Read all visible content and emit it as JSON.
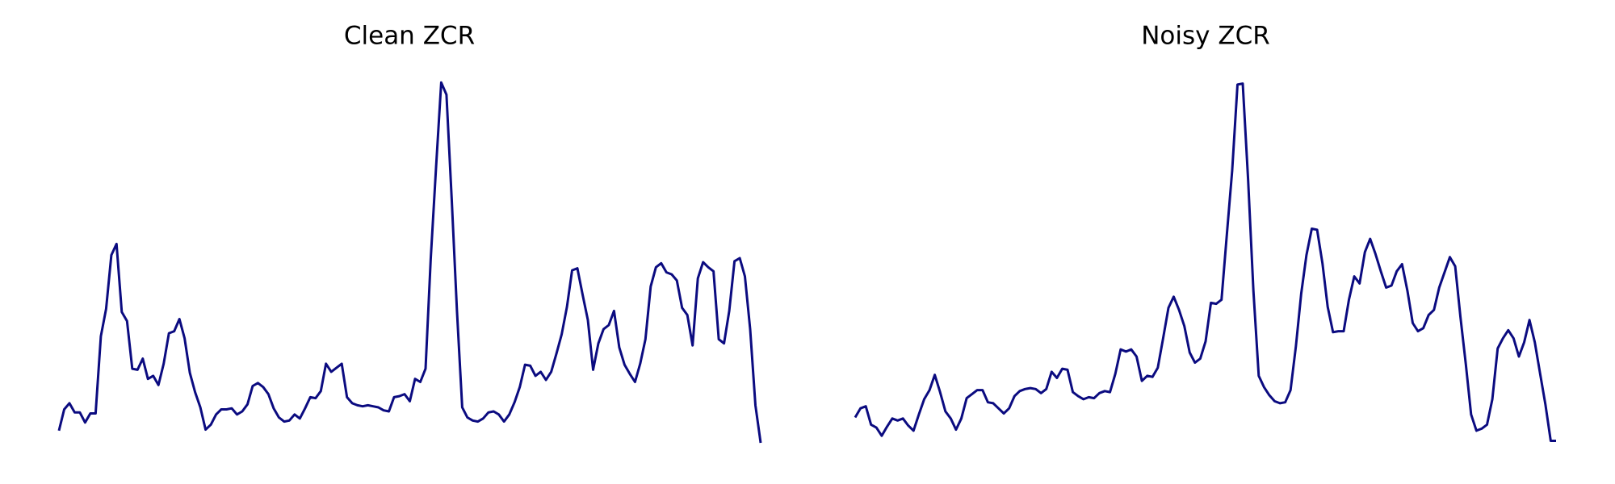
{
  "chart_data": [
    {
      "type": "line",
      "title": "Clean ZCR",
      "color": "#0b0b80",
      "ylim": [
        0,
        360
      ],
      "values": [
        12,
        33,
        39,
        30,
        30,
        20,
        29,
        29,
        105,
        132,
        185,
        196,
        129,
        120,
        73,
        72,
        83,
        63,
        66,
        57,
        78,
        108,
        110,
        122,
        103,
        69,
        50,
        35,
        13,
        18,
        28,
        33,
        33,
        34,
        28,
        31,
        38,
        56,
        59,
        55,
        48,
        34,
        25,
        21,
        22,
        28,
        24,
        34,
        45,
        44,
        51,
        78,
        70,
        74,
        78,
        45,
        39,
        37,
        36,
        37,
        36,
        35,
        32,
        31,
        45,
        46,
        48,
        41,
        63,
        60,
        73,
        181,
        270,
        355,
        343,
        240,
        130,
        35,
        25,
        22,
        21,
        24,
        30,
        31,
        28,
        21,
        28,
        40,
        55,
        77,
        76,
        66,
        70,
        62,
        70,
        88,
        107,
        134,
        170,
        172,
        146,
        121,
        72,
        98,
        112,
        116,
        130,
        94,
        77,
        68,
        60,
        78,
        102,
        154,
        173,
        177,
        168,
        166,
        160,
        133,
        126,
        96,
        162,
        178,
        173,
        169,
        102,
        98,
        130,
        179,
        182,
        164,
        112,
        37,
        0
      ]
    },
    {
      "type": "line",
      "title": "Noisy ZCR",
      "color": "#0b0b80",
      "ylim": [
        0,
        360
      ],
      "values": [
        25,
        34,
        36,
        18,
        15,
        7,
        16,
        24,
        22,
        24,
        17,
        12,
        28,
        43,
        52,
        67,
        50,
        31,
        24,
        13,
        24,
        44,
        48,
        52,
        52,
        40,
        39,
        34,
        29,
        34,
        46,
        51,
        53,
        54,
        53,
        49,
        53,
        70,
        64,
        73,
        72,
        50,
        46,
        43,
        45,
        44,
        49,
        51,
        50,
        68,
        92,
        90,
        92,
        85,
        61,
        66,
        65,
        74,
        103,
        133,
        144,
        131,
        115,
        89,
        79,
        83,
        100,
        138,
        137,
        141,
        205,
        268,
        353,
        354,
        260,
        150,
        66,
        55,
        47,
        41,
        39,
        40,
        52,
        95,
        147,
        185,
        211,
        210,
        177,
        134,
        109,
        110,
        110,
        141,
        164,
        157,
        188,
        201,
        186,
        169,
        153,
        155,
        169,
        176,
        150,
        118,
        110,
        113,
        126,
        131,
        153,
        168,
        183,
        174,
        124,
        78,
        28,
        12,
        14,
        18,
        43,
        93,
        103,
        111,
        103,
        85,
        99,
        121,
        99,
        68,
        38,
        2,
        2
      ]
    }
  ]
}
